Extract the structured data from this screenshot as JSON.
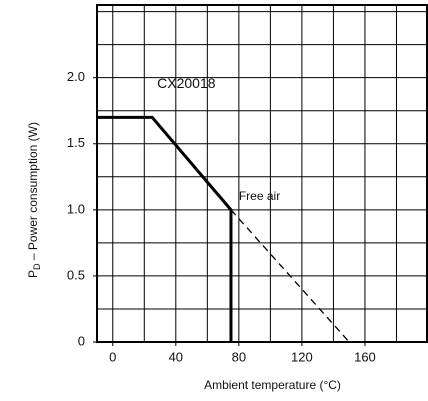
{
  "chart_data": {
    "type": "line",
    "x_label": "Ambient temperature (°C)",
    "y_label": {
      "main": "P",
      "sub": "D",
      "rest": " – Power consumption (W)"
    },
    "series": [
      {
        "name": "CX20018",
        "color": "#000000",
        "dash": false,
        "x": [
          -10,
          25,
          75,
          75
        ],
        "values": [
          1.7,
          1.7,
          1.0,
          0
        ]
      },
      {
        "name": "Free air",
        "color": "#000000",
        "dash": true,
        "x": [
          75,
          150
        ],
        "values": [
          1.0,
          0
        ]
      }
    ],
    "xlim": [
      -10,
      200
    ],
    "ylim": [
      0,
      2.55
    ],
    "xticks": [
      0,
      40,
      80,
      120,
      160
    ],
    "yticks": [
      0,
      0.5,
      {
        "value": 1,
        "label": "1.0"
      },
      1.5,
      {
        "value": 2,
        "label": "2.0"
      }
    ],
    "xgrid": [
      0,
      20,
      40,
      60,
      80,
      100,
      120,
      140,
      160,
      180,
      200
    ],
    "ygrid": [
      0.25,
      0.5,
      0.75,
      1,
      1.25,
      1.5,
      1.75,
      2,
      2.25,
      2.5
    ],
    "grid": true
  }
}
